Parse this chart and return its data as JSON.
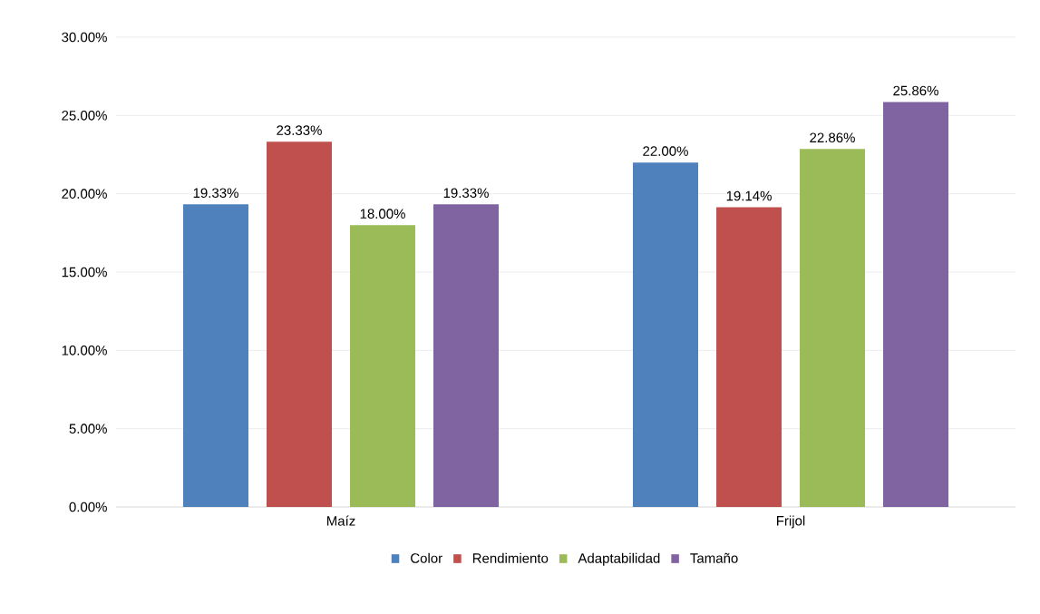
{
  "chart_data": {
    "type": "bar",
    "categories": [
      "Maíz",
      "Frijol"
    ],
    "series": [
      {
        "name": "Color",
        "color": "#4f81bd",
        "values": [
          19.33,
          22.0
        ],
        "value_labels": [
          "19.33%",
          "22.00%"
        ]
      },
      {
        "name": "Rendimiento",
        "color": "#c0504d",
        "values": [
          23.33,
          19.14
        ],
        "value_labels": [
          "23.33%",
          "19.14%"
        ]
      },
      {
        "name": "Adaptabilidad",
        "color": "#9bbb59",
        "values": [
          18.0,
          22.86
        ],
        "value_labels": [
          "18.00%",
          "22.86%"
        ]
      },
      {
        "name": "Tamaño",
        "color": "#8064a2",
        "values": [
          19.33,
          25.86
        ],
        "value_labels": [
          "19.33%",
          "25.86%"
        ]
      }
    ],
    "ylim": [
      0,
      30
    ],
    "yticks": [
      {
        "value": 0,
        "label": "0.00%"
      },
      {
        "value": 5,
        "label": "5.00%"
      },
      {
        "value": 10,
        "label": "10.00%"
      },
      {
        "value": 15,
        "label": "15.00%"
      },
      {
        "value": 20,
        "label": "20.00%"
      },
      {
        "value": 25,
        "label": "25.00%"
      },
      {
        "value": 30,
        "label": "30.00%"
      }
    ],
    "grid": "y",
    "legend": "bottom"
  }
}
